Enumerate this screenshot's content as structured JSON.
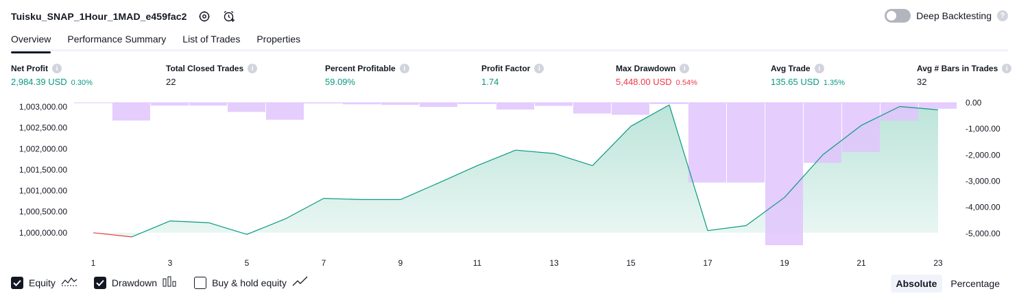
{
  "header": {
    "strategy_name": "Tuisku_SNAP_1Hour_1MAD_e459fac2",
    "settings_icon": "gear-icon",
    "alert_icon": "alarm-add-icon"
  },
  "deep_backtesting": {
    "label": "Deep Backtesting",
    "enabled": false,
    "help": "?"
  },
  "tabs": [
    {
      "label": "Overview",
      "active": true
    },
    {
      "label": "Performance Summary",
      "active": false
    },
    {
      "label": "List of Trades",
      "active": false
    },
    {
      "label": "Properties",
      "active": false
    }
  ],
  "metrics": {
    "net_profit": {
      "label": "Net Profit",
      "value": "2,984.39 USD",
      "pct": "0.30%"
    },
    "total_closed_trades": {
      "label": "Total Closed Trades",
      "value": "22"
    },
    "percent_profitable": {
      "label": "Percent Profitable",
      "value": "59.09%"
    },
    "profit_factor": {
      "label": "Profit Factor",
      "value": "1.74"
    },
    "max_drawdown": {
      "label": "Max Drawdown",
      "value": "5,448.00 USD",
      "pct": "0.54%"
    },
    "avg_trade": {
      "label": "Avg Trade",
      "value": "135.65 USD",
      "pct": "1.35%"
    },
    "avg_bars": {
      "label": "Avg # Bars in Trades",
      "value": "32"
    },
    "info_glyph": "i"
  },
  "chart_data": {
    "type": "line",
    "x_ticks": [
      "1",
      "3",
      "5",
      "7",
      "9",
      "11",
      "13",
      "15",
      "17",
      "19",
      "21",
      "23"
    ],
    "left_axis": {
      "ticks": [
        "1,003,000.00",
        "1,002,500.00",
        "1,002,000.00",
        "1,001,500.00",
        "1,001,000.00",
        "1,000,500.00",
        "1,000,000.00"
      ],
      "range": [
        999800,
        1003100
      ]
    },
    "right_axis": {
      "ticks": [
        "0.00",
        "-1,000.00",
        "-2,000.00",
        "-3,000.00",
        "-4,000.00",
        "-5,000.00"
      ],
      "range": [
        -5500,
        0
      ]
    },
    "equity": {
      "name": "Equity",
      "x": [
        1,
        2,
        3,
        4,
        5,
        6,
        7,
        8,
        9,
        10,
        11,
        12,
        13,
        14,
        15,
        16,
        17,
        18,
        19,
        20,
        21,
        22,
        23
      ],
      "values": [
        1000000,
        999900,
        1000280,
        1000240,
        999960,
        1000330,
        1000820,
        1000790,
        1000790,
        1001190,
        1001600,
        1001970,
        1001890,
        1001600,
        1002540,
        1003050,
        1000050,
        1000170,
        1000840,
        1001860,
        1002560,
        1003010,
        1002930
      ]
    },
    "drawdown": {
      "name": "Drawdown",
      "x": [
        2,
        3,
        4,
        5,
        6,
        7,
        8,
        9,
        10,
        11,
        12,
        13,
        14,
        15,
        16,
        17,
        18,
        19,
        20,
        21,
        22,
        23
      ],
      "values": [
        -680,
        -110,
        -110,
        -350,
        -650,
        0,
        -60,
        -80,
        -160,
        -50,
        -260,
        -120,
        -410,
        -460,
        -50,
        -3050,
        -3050,
        -5448,
        -2300,
        -1880,
        -680,
        -230
      ]
    },
    "colors": {
      "equity_line": "#089981",
      "equity_fill": "#b9e3d7",
      "equity_negative": "#f23645",
      "drawdown_fill": "#e1c4fd"
    }
  },
  "legend": {
    "equity": {
      "label": "Equity",
      "checked": true
    },
    "drawdown": {
      "label": "Drawdown",
      "checked": true
    },
    "buy_hold": {
      "label": "Buy & hold equity",
      "checked": false
    }
  },
  "modes": {
    "absolute": "Absolute",
    "percentage": "Percentage",
    "active": "absolute"
  }
}
